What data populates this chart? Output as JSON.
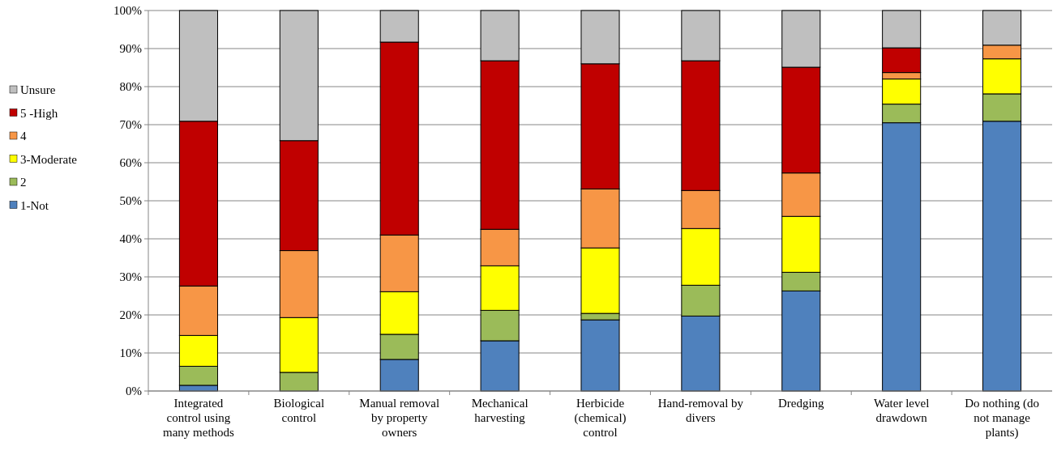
{
  "chart_data": {
    "type": "bar",
    "stacked": true,
    "categories": [
      "Integrated control using many methods",
      "Biological control",
      "Manual removal by property owners",
      "Mechanical harvesting",
      "Herbicide (chemical) control",
      "Hand-removal by divers",
      "Dredging",
      "Water level drawdown",
      "Do nothing (do not manage plants)"
    ],
    "series": [
      {
        "name": "1-Not",
        "color": "#4f81bd",
        "values": [
          1.5,
          0,
          8.3,
          13.2,
          18.7,
          19.7,
          26.3,
          70.5,
          70.9
        ]
      },
      {
        "name": "2",
        "color": "#9bbb59",
        "values": [
          5.0,
          4.9,
          6.6,
          8.0,
          1.7,
          8.1,
          4.9,
          4.9,
          7.2
        ]
      },
      {
        "name": "3-Moderate",
        "color": "#ffff00",
        "values": [
          8.1,
          14.4,
          11.2,
          11.7,
          17.2,
          14.9,
          14.7,
          6.6,
          9.2
        ]
      },
      {
        "name": "4",
        "color": "#f79646",
        "values": [
          13.0,
          17.6,
          14.9,
          9.6,
          15.5,
          10.0,
          11.4,
          1.7,
          3.6
        ]
      },
      {
        "name": "5 -High",
        "color": "#c00000",
        "values": [
          43.3,
          28.9,
          50.7,
          44.3,
          32.9,
          34.1,
          27.8,
          6.5,
          0
        ]
      },
      {
        "name": "Unsure",
        "color": "#bfbfbf",
        "values": [
          29.1,
          34.2,
          8.3,
          13.2,
          14.0,
          13.2,
          14.9,
          9.8,
          9.1
        ]
      }
    ],
    "ylim": [
      0,
      100
    ],
    "yticks": [
      {
        "value": 0,
        "label": "0%"
      },
      {
        "value": 10,
        "label": "10%"
      },
      {
        "value": 20,
        "label": "20%"
      },
      {
        "value": 30,
        "label": "30%"
      },
      {
        "value": 40,
        "label": "40%"
      },
      {
        "value": 50,
        "label": "50%"
      },
      {
        "value": 60,
        "label": "60%"
      },
      {
        "value": 70,
        "label": "70%"
      },
      {
        "value": 80,
        "label": "80%"
      },
      {
        "value": 90,
        "label": "90%"
      },
      {
        "value": 100,
        "label": "100%"
      }
    ],
    "grid": "y",
    "legend": "left"
  }
}
